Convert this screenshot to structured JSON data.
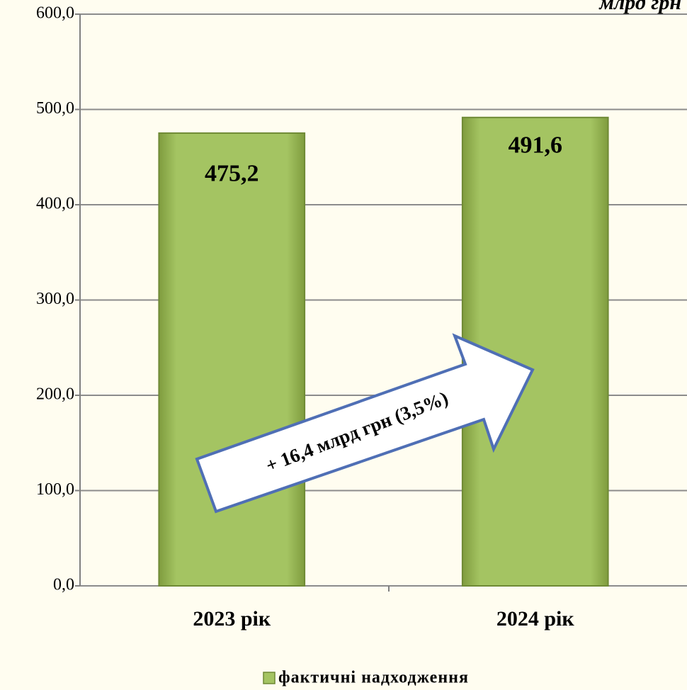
{
  "chart_data": {
    "type": "bar",
    "unit": "млрд грн",
    "categories": [
      "2023 рік",
      "2024 рік"
    ],
    "series": [
      {
        "name": "фактичні надходження",
        "color": "#a4c462",
        "values": [
          475.2,
          491.6
        ],
        "value_labels": [
          "475,2",
          "491,6"
        ]
      }
    ],
    "ylim": [
      0,
      600
    ],
    "yticks": [
      {
        "value": 0,
        "label": "0,0"
      },
      {
        "value": 100,
        "label": "100,0"
      },
      {
        "value": 200,
        "label": "200,0"
      },
      {
        "value": 300,
        "label": "300,0"
      },
      {
        "value": 400,
        "label": "400,0"
      },
      {
        "value": 500,
        "label": "500,0"
      },
      {
        "value": 600,
        "label": "600,0"
      }
    ],
    "grid": true,
    "annotation": "+ 16,4 млрд грн (3,5%)",
    "legend": "bottom"
  }
}
